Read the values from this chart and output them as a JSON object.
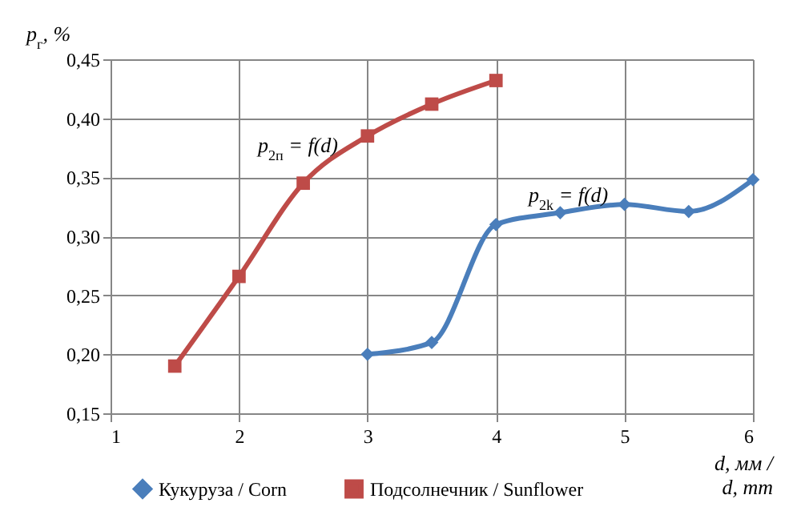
{
  "chart_data": {
    "type": "line",
    "xlabel": "d, мм /\nd, mm",
    "ylabel": "p$_{г}$, %",
    "xlim": [
      1,
      6
    ],
    "xticks": [
      1,
      2,
      3,
      4,
      5,
      6
    ],
    "ylim": [
      0.15,
      0.45
    ],
    "yticks": [
      {
        "value": 0.15,
        "label": "0,15"
      },
      {
        "value": 0.2,
        "label": "0,20"
      },
      {
        "value": 0.25,
        "label": "0,25"
      },
      {
        "value": 0.3,
        "label": "0,30"
      },
      {
        "value": 0.35,
        "label": "0,35"
      },
      {
        "value": 0.4,
        "label": "0,40"
      },
      {
        "value": 0.45,
        "label": "0,45"
      }
    ],
    "grid": true,
    "legend": "bottom",
    "line_style": "solid",
    "series": [
      {
        "name": "Кукуруза / Corn",
        "color": "#4a7ebb",
        "marker": "diamond",
        "x": [
          3,
          3.5,
          4,
          4.5,
          5,
          5.5,
          6
        ],
        "values": [
          0.2,
          0.21,
          0.31,
          0.32,
          0.327,
          0.321,
          0.348
        ]
      },
      {
        "name": "Подсолнечник / Sunflower",
        "color": "#be4b48",
        "marker": "square",
        "x": [
          1.5,
          2,
          2.5,
          3,
          3.5,
          4
        ],
        "values": [
          0.19,
          0.266,
          0.345,
          0.385,
          0.412,
          0.432
        ]
      }
    ],
    "annotations": [
      "p$_{2п}$ = f(d)",
      "p$_{2k}$ = f(d)"
    ]
  }
}
